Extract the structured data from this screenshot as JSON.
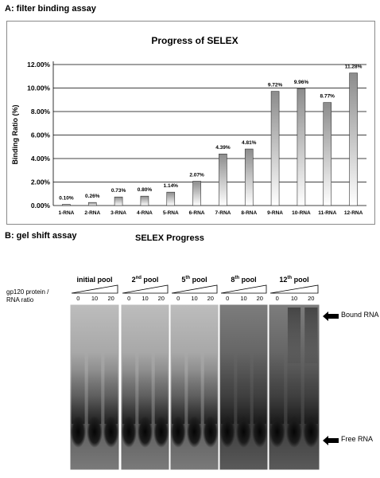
{
  "panel_a": {
    "label": "A: filter binding assay"
  },
  "chart_data": {
    "type": "bar",
    "title": "Progress of SELEX",
    "xlabel": "",
    "ylabel": "Binding Ratio  (%)",
    "categories": [
      "1-RNA",
      "2-RNA",
      "3-RNA",
      "4-RNA",
      "5-RNA",
      "6-RNA",
      "7-RNA",
      "8-RNA",
      "9-RNA",
      "10-RNA",
      "11-RNA",
      "12-RNA"
    ],
    "values": [
      0.1,
      0.26,
      0.73,
      0.8,
      1.14,
      2.07,
      4.39,
      4.81,
      9.72,
      9.96,
      8.77,
      11.28
    ],
    "data_labels": [
      "0.10%",
      "0.26%",
      "0.73%",
      "0.80%",
      "1.14%",
      "2.07%",
      "4.39%",
      "4.81%",
      "9.72%",
      "9.96%",
      "8.77%",
      "11.28%"
    ],
    "yticks": [
      "0.00%",
      "2.00%",
      "4.00%",
      "6.00%",
      "8.00%",
      "10.00%",
      "12.00%"
    ],
    "ylim": [
      0,
      12
    ],
    "grid": true,
    "legend": "none"
  },
  "panel_b": {
    "label": "B: gel shift assay",
    "title": "SELEX Progress",
    "ratio_label_line1": "gp120 protein /",
    "ratio_label_line2": "RNA ratio",
    "pools": [
      {
        "base": "initial pool",
        "sup": "",
        "rest": ""
      },
      {
        "base": "2",
        "sup": "nd",
        "rest": " pool"
      },
      {
        "base": "5",
        "sup": "th",
        "rest": " pool"
      },
      {
        "base": "8",
        "sup": "th",
        "rest": " pool"
      },
      {
        "base": "12",
        "sup": "th",
        "rest": " pool"
      }
    ],
    "concentrations": [
      "0",
      "10",
      "20"
    ],
    "bound_label": "Bound RNA",
    "free_label": "Free RNA"
  }
}
